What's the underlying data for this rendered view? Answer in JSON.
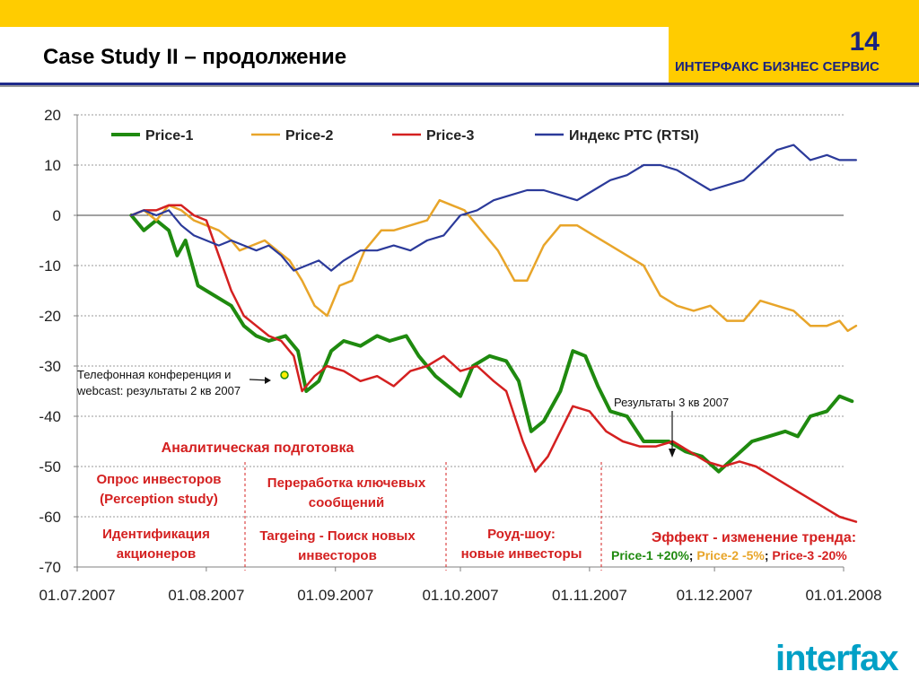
{
  "header": {
    "title": "Case Study II – продолжение",
    "page_number": "14",
    "company": "ИНТЕРФАКС БИЗНЕС СЕРВИС"
  },
  "logo": {
    "text": "interfax"
  },
  "colors": {
    "header_bg": "#ffcc00",
    "price1": "#1f8a0f",
    "price2": "#e8a52a",
    "price3": "#d42020",
    "rtsi": "#2b3a9a",
    "annotation_red": "#d42020",
    "annotation_green": "#1f8a0f",
    "annotation_orange": "#e8a52a"
  },
  "chart_data": {
    "type": "line",
    "x_labels": [
      "01.07.2007",
      "01.08.2007",
      "01.09.2007",
      "01.10.2007",
      "01.11.2007",
      "01.12.2007",
      "01.01.2008"
    ],
    "xlim": [
      "01.07.2007",
      "01.01.2008"
    ],
    "ylim": [
      -70,
      20
    ],
    "y_ticks": [
      20,
      10,
      0,
      -10,
      -20,
      -30,
      -40,
      -50,
      -60,
      -70
    ],
    "grid": "dotted horizontal",
    "legend_position": "top",
    "series": [
      {
        "name": "Price-1",
        "color": "#1f8a0f",
        "points": [
          [
            "14.07.2007",
            0
          ],
          [
            "17.07.2007",
            -3
          ],
          [
            "20.07.2007",
            -1
          ],
          [
            "23.07.2007",
            -3
          ],
          [
            "25.07.2007",
            -8
          ],
          [
            "27.07.2007",
            -5
          ],
          [
            "30.07.2007",
            -14
          ],
          [
            "03.08.2007",
            -16
          ],
          [
            "07.08.2007",
            -18
          ],
          [
            "10.08.2007",
            -22
          ],
          [
            "13.08.2007",
            -24
          ],
          [
            "16.08.2007",
            -25
          ],
          [
            "20.08.2007",
            -24
          ],
          [
            "23.08.2007",
            -27
          ],
          [
            "25.08.2007",
            -35
          ],
          [
            "28.08.2007",
            -33
          ],
          [
            "31.08.2007",
            -27
          ],
          [
            "03.09.2007",
            -25
          ],
          [
            "07.09.2007",
            -26
          ],
          [
            "11.09.2007",
            -24
          ],
          [
            "14.09.2007",
            -25
          ],
          [
            "18.09.2007",
            -24
          ],
          [
            "21.09.2007",
            -28
          ],
          [
            "25.09.2007",
            -32
          ],
          [
            "28.09.2007",
            -34
          ],
          [
            "01.10.2007",
            -36
          ],
          [
            "04.10.2007",
            -30
          ],
          [
            "08.10.2007",
            -28
          ],
          [
            "12.10.2007",
            -29
          ],
          [
            "15.10.2007",
            -33
          ],
          [
            "18.10.2007",
            -43
          ],
          [
            "21.10.2007",
            -41
          ],
          [
            "25.10.2007",
            -35
          ],
          [
            "28.10.2007",
            -27
          ],
          [
            "31.10.2007",
            -28
          ],
          [
            "03.11.2007",
            -34
          ],
          [
            "06.11.2007",
            -39
          ],
          [
            "10.11.2007",
            -40
          ],
          [
            "14.11.2007",
            -45
          ],
          [
            "20.11.2007",
            -45
          ],
          [
            "24.11.2007",
            -47
          ],
          [
            "28.11.2007",
            -48
          ],
          [
            "02.12.2007",
            -51
          ],
          [
            "06.12.2007",
            -48
          ],
          [
            "10.12.2007",
            -45
          ],
          [
            "14.12.2007",
            -44
          ],
          [
            "18.12.2007",
            -43
          ],
          [
            "21.12.2007",
            -44
          ],
          [
            "24.12.2007",
            -40
          ],
          [
            "28.12.2007",
            -39
          ],
          [
            "31.12.2007",
            -36
          ],
          [
            "03.01.2008",
            -37
          ]
        ]
      },
      {
        "name": "Price-2",
        "color": "#e8a52a",
        "points": [
          [
            "14.07.2007",
            0
          ],
          [
            "17.07.2007",
            1
          ],
          [
            "20.07.2007",
            -1
          ],
          [
            "23.07.2007",
            2
          ],
          [
            "26.07.2007",
            1
          ],
          [
            "29.07.2007",
            -1
          ],
          [
            "01.08.2007",
            -2
          ],
          [
            "04.08.2007",
            -3
          ],
          [
            "07.08.2007",
            -5
          ],
          [
            "09.08.2007",
            -7
          ],
          [
            "12.08.2007",
            -6
          ],
          [
            "15.08.2007",
            -5
          ],
          [
            "18.08.2007",
            -7
          ],
          [
            "21.08.2007",
            -9
          ],
          [
            "24.08.2007",
            -13
          ],
          [
            "27.08.2007",
            -18
          ],
          [
            "30.08.2007",
            -20
          ],
          [
            "02.09.2007",
            -14
          ],
          [
            "05.09.2007",
            -13
          ],
          [
            "08.09.2007",
            -7
          ],
          [
            "12.09.2007",
            -3
          ],
          [
            "15.09.2007",
            -3
          ],
          [
            "19.09.2007",
            -2
          ],
          [
            "23.09.2007",
            -1
          ],
          [
            "26.09.2007",
            3
          ],
          [
            "29.09.2007",
            2
          ],
          [
            "02.10.2007",
            1
          ],
          [
            "06.10.2007",
            -3
          ],
          [
            "10.10.2007",
            -7
          ],
          [
            "14.10.2007",
            -13
          ],
          [
            "17.10.2007",
            -13
          ],
          [
            "21.10.2007",
            -6
          ],
          [
            "25.10.2007",
            -2
          ],
          [
            "29.10.2007",
            -2
          ],
          [
            "02.11.2007",
            -4
          ],
          [
            "06.11.2007",
            -6
          ],
          [
            "10.11.2007",
            -8
          ],
          [
            "14.11.2007",
            -10
          ],
          [
            "18.11.2007",
            -16
          ],
          [
            "22.11.2007",
            -18
          ],
          [
            "26.11.2007",
            -19
          ],
          [
            "30.11.2007",
            -18
          ],
          [
            "04.12.2007",
            -21
          ],
          [
            "08.12.2007",
            -21
          ],
          [
            "12.12.2007",
            -17
          ],
          [
            "16.12.2007",
            -18
          ],
          [
            "20.12.2007",
            -19
          ],
          [
            "24.12.2007",
            -22
          ],
          [
            "28.12.2007",
            -22
          ],
          [
            "31.12.2007",
            -21
          ],
          [
            "02.01.2008",
            -23
          ],
          [
            "04.01.2008",
            -22
          ]
        ]
      },
      {
        "name": "Price-3",
        "color": "#d42020",
        "points": [
          [
            "14.07.2007",
            0
          ],
          [
            "17.07.2007",
            1
          ],
          [
            "20.07.2007",
            1
          ],
          [
            "23.07.2007",
            2
          ],
          [
            "26.07.2007",
            2
          ],
          [
            "29.07.2007",
            0
          ],
          [
            "01.08.2007",
            -1
          ],
          [
            "04.08.2007",
            -8
          ],
          [
            "07.08.2007",
            -15
          ],
          [
            "10.08.2007",
            -20
          ],
          [
            "13.08.2007",
            -22
          ],
          [
            "16.08.2007",
            -24
          ],
          [
            "19.08.2007",
            -25
          ],
          [
            "22.08.2007",
            -28
          ],
          [
            "24.08.2007",
            -35
          ],
          [
            "27.08.2007",
            -32
          ],
          [
            "30.08.2007",
            -30
          ],
          [
            "03.09.2007",
            -31
          ],
          [
            "07.09.2007",
            -33
          ],
          [
            "11.09.2007",
            -32
          ],
          [
            "15.09.2007",
            -34
          ],
          [
            "19.09.2007",
            -31
          ],
          [
            "23.09.2007",
            -30
          ],
          [
            "27.09.2007",
            -28
          ],
          [
            "01.10.2007",
            -31
          ],
          [
            "05.10.2007",
            -30
          ],
          [
            "09.10.2007",
            -33
          ],
          [
            "12.10.2007",
            -35
          ],
          [
            "16.10.2007",
            -45
          ],
          [
            "19.10.2007",
            -51
          ],
          [
            "22.10.2007",
            -48
          ],
          [
            "25.10.2007",
            -43
          ],
          [
            "28.10.2007",
            -38
          ],
          [
            "01.11.2007",
            -39
          ],
          [
            "05.11.2007",
            -43
          ],
          [
            "09.11.2007",
            -45
          ],
          [
            "13.11.2007",
            -46
          ],
          [
            "17.11.2007",
            -46
          ],
          [
            "21.11.2007",
            -45
          ],
          [
            "25.11.2007",
            -47
          ],
          [
            "29.11.2007",
            -49
          ],
          [
            "03.12.2007",
            -50
          ],
          [
            "07.12.2007",
            -49
          ],
          [
            "11.12.2007",
            -50
          ],
          [
            "15.12.2007",
            -52
          ],
          [
            "19.12.2007",
            -54
          ],
          [
            "23.12.2007",
            -56
          ],
          [
            "27.12.2007",
            -58
          ],
          [
            "31.12.2007",
            -60
          ],
          [
            "04.01.2008",
            -61
          ]
        ]
      },
      {
        "name": "Индекс РТС (RTSI)",
        "color": "#2b3a9a",
        "points": [
          [
            "14.07.2007",
            0
          ],
          [
            "17.07.2007",
            1
          ],
          [
            "20.07.2007",
            0
          ],
          [
            "23.07.2007",
            1
          ],
          [
            "26.07.2007",
            -2
          ],
          [
            "29.07.2007",
            -4
          ],
          [
            "01.08.2007",
            -5
          ],
          [
            "04.08.2007",
            -6
          ],
          [
            "07.08.2007",
            -5
          ],
          [
            "10.08.2007",
            -6
          ],
          [
            "13.08.2007",
            -7
          ],
          [
            "16.08.2007",
            -6
          ],
          [
            "19.08.2007",
            -8
          ],
          [
            "22.08.2007",
            -11
          ],
          [
            "25.08.2007",
            -10
          ],
          [
            "28.08.2007",
            -9
          ],
          [
            "31.08.2007",
            -11
          ],
          [
            "03.09.2007",
            -9
          ],
          [
            "07.09.2007",
            -7
          ],
          [
            "11.09.2007",
            -7
          ],
          [
            "15.09.2007",
            -6
          ],
          [
            "19.09.2007",
            -7
          ],
          [
            "23.09.2007",
            -5
          ],
          [
            "27.09.2007",
            -4
          ],
          [
            "01.10.2007",
            0
          ],
          [
            "05.10.2007",
            1
          ],
          [
            "09.10.2007",
            3
          ],
          [
            "13.10.2007",
            4
          ],
          [
            "17.10.2007",
            5
          ],
          [
            "21.10.2007",
            5
          ],
          [
            "25.10.2007",
            4
          ],
          [
            "29.10.2007",
            3
          ],
          [
            "02.11.2007",
            5
          ],
          [
            "06.11.2007",
            7
          ],
          [
            "10.11.2007",
            8
          ],
          [
            "14.11.2007",
            10
          ],
          [
            "18.11.2007",
            10
          ],
          [
            "22.11.2007",
            9
          ],
          [
            "26.11.2007",
            7
          ],
          [
            "30.11.2007",
            5
          ],
          [
            "04.12.2007",
            6
          ],
          [
            "08.12.2007",
            7
          ],
          [
            "12.12.2007",
            10
          ],
          [
            "16.12.2007",
            13
          ],
          [
            "20.12.2007",
            14
          ],
          [
            "24.12.2007",
            11
          ],
          [
            "28.12.2007",
            12
          ],
          [
            "31.12.2007",
            11
          ],
          [
            "04.01.2008",
            11
          ]
        ]
      }
    ],
    "annotations": {
      "conference": "Телефонная конференция и webcast: результаты 2 кв 2007",
      "q3_results": "Результаты 3 кв 2007",
      "analytical": "Аналитическая подготовка",
      "survey": "Опрос инвесторов (Perception study)",
      "identification": "Идентификация акционеров",
      "messages": "Переработка ключевых сообщений",
      "targeting": "Targeing - Поиск новых инвесторов",
      "roadshow": "Роуд-шоу: новые инвесторы",
      "effect": "Эффект - изменение тренда:",
      "effect_p1": "Price-1 +20%",
      "effect_p2": "Price-2 -5%",
      "effect_p3": "Price-3 -20%",
      "sep": ";"
    }
  }
}
